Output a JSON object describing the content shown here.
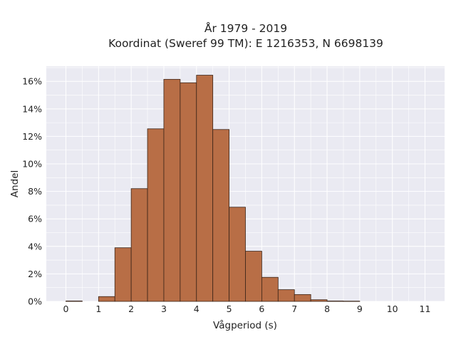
{
  "chart_data": {
    "type": "bar",
    "title_line1": "År 1979 - 2019",
    "title_line2": "Koordinat (Sweref 99 TM): E 1216353, N 6698139",
    "xlabel": "Vågperiod (s)",
    "ylabel": "Andel",
    "xlim": [
      -0.6,
      11.6
    ],
    "ylim": [
      0,
      17.1
    ],
    "grid": true,
    "bin_width": 0.5,
    "x_ticks": [
      0,
      1,
      2,
      3,
      4,
      5,
      6,
      7,
      8,
      9,
      10,
      11
    ],
    "y_ticks": [
      0,
      2,
      4,
      6,
      8,
      10,
      12,
      14,
      16
    ],
    "y_tick_suffix": "%",
    "bins": [
      {
        "start": 0.0,
        "value": 0.03
      },
      {
        "start": 1.0,
        "value": 0.35
      },
      {
        "start": 1.5,
        "value": 3.9
      },
      {
        "start": 2.0,
        "value": 8.2
      },
      {
        "start": 2.5,
        "value": 12.55
      },
      {
        "start": 3.0,
        "value": 16.15
      },
      {
        "start": 3.5,
        "value": 15.9
      },
      {
        "start": 4.0,
        "value": 16.45
      },
      {
        "start": 4.5,
        "value": 12.5
      },
      {
        "start": 5.0,
        "value": 6.85
      },
      {
        "start": 5.5,
        "value": 3.65
      },
      {
        "start": 6.0,
        "value": 1.75
      },
      {
        "start": 6.5,
        "value": 0.85
      },
      {
        "start": 7.0,
        "value": 0.5
      },
      {
        "start": 7.5,
        "value": 0.12
      },
      {
        "start": 8.0,
        "value": 0.03
      },
      {
        "start": 8.5,
        "value": 0.02
      }
    ],
    "colors": {
      "bar_fill": "#b86e46",
      "bar_edge": "#3a2418",
      "plot_bg": "#eaeaf2",
      "grid": "#ffffff"
    }
  }
}
